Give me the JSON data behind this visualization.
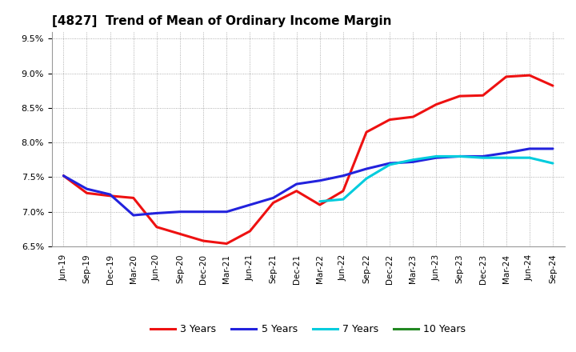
{
  "title": "[4827]  Trend of Mean of Ordinary Income Margin",
  "x_labels": [
    "Jun-19",
    "Sep-19",
    "Dec-19",
    "Mar-20",
    "Jun-20",
    "Sep-20",
    "Dec-20",
    "Mar-21",
    "Jun-21",
    "Sep-21",
    "Dec-21",
    "Mar-22",
    "Jun-22",
    "Sep-22",
    "Dec-22",
    "Mar-23",
    "Jun-23",
    "Sep-23",
    "Dec-23",
    "Mar-24",
    "Jun-24",
    "Sep-24"
  ],
  "ylim": [
    0.065,
    0.096
  ],
  "yticks": [
    0.065,
    0.07,
    0.075,
    0.08,
    0.085,
    0.09,
    0.095
  ],
  "series": {
    "3 Years": {
      "color": "#EE1111",
      "linewidth": 2.2,
      "data_x": [
        "Jun-19",
        "Sep-19",
        "Dec-19",
        "Mar-20",
        "Jun-20",
        "Sep-20",
        "Dec-20",
        "Mar-21",
        "Jun-21",
        "Sep-21",
        "Dec-21",
        "Mar-22",
        "Jun-22",
        "Sep-22",
        "Dec-22",
        "Mar-23",
        "Jun-23",
        "Sep-23",
        "Dec-23",
        "Mar-24",
        "Jun-24",
        "Sep-24"
      ],
      "data_y": [
        0.0752,
        0.0727,
        0.0723,
        0.072,
        0.0678,
        0.0668,
        0.0658,
        0.0654,
        0.0672,
        0.0713,
        0.073,
        0.071,
        0.073,
        0.0815,
        0.0833,
        0.0837,
        0.0855,
        0.0867,
        0.0868,
        0.0895,
        0.0897,
        0.0882
      ]
    },
    "5 Years": {
      "color": "#2222DD",
      "linewidth": 2.2,
      "data_x": [
        "Jun-19",
        "Sep-19",
        "Dec-19",
        "Mar-20",
        "Jun-20",
        "Sep-20",
        "Dec-20",
        "Mar-21",
        "Jun-21",
        "Sep-21",
        "Dec-21",
        "Mar-22",
        "Jun-22",
        "Sep-22",
        "Dec-22",
        "Mar-23",
        "Jun-23",
        "Sep-23",
        "Dec-23",
        "Mar-24",
        "Jun-24",
        "Sep-24"
      ],
      "data_y": [
        0.0752,
        0.0733,
        0.0725,
        0.0695,
        0.0698,
        0.07,
        0.07,
        0.07,
        0.071,
        0.072,
        0.074,
        0.0745,
        0.0752,
        0.0762,
        0.077,
        0.0772,
        0.0778,
        0.078,
        0.078,
        0.0785,
        0.0791,
        0.0791
      ]
    },
    "7 Years": {
      "color": "#00CCDD",
      "linewidth": 2.2,
      "data_x": [
        "Mar-22",
        "Jun-22",
        "Sep-22",
        "Dec-22",
        "Mar-23",
        "Jun-23",
        "Sep-23",
        "Dec-23",
        "Mar-24",
        "Jun-24",
        "Sep-24"
      ],
      "data_y": [
        0.0715,
        0.0718,
        0.0748,
        0.0768,
        0.0775,
        0.078,
        0.078,
        0.0778,
        0.0778,
        0.0778,
        0.077
      ]
    },
    "10 Years": {
      "color": "#228822",
      "linewidth": 2.2,
      "data_x": [],
      "data_y": []
    }
  },
  "background_color": "#ffffff",
  "grid_color": "#999999",
  "legend_items": [
    "3 Years",
    "5 Years",
    "7 Years",
    "10 Years"
  ],
  "legend_colors": [
    "#EE1111",
    "#2222DD",
    "#00CCDD",
    "#228822"
  ]
}
